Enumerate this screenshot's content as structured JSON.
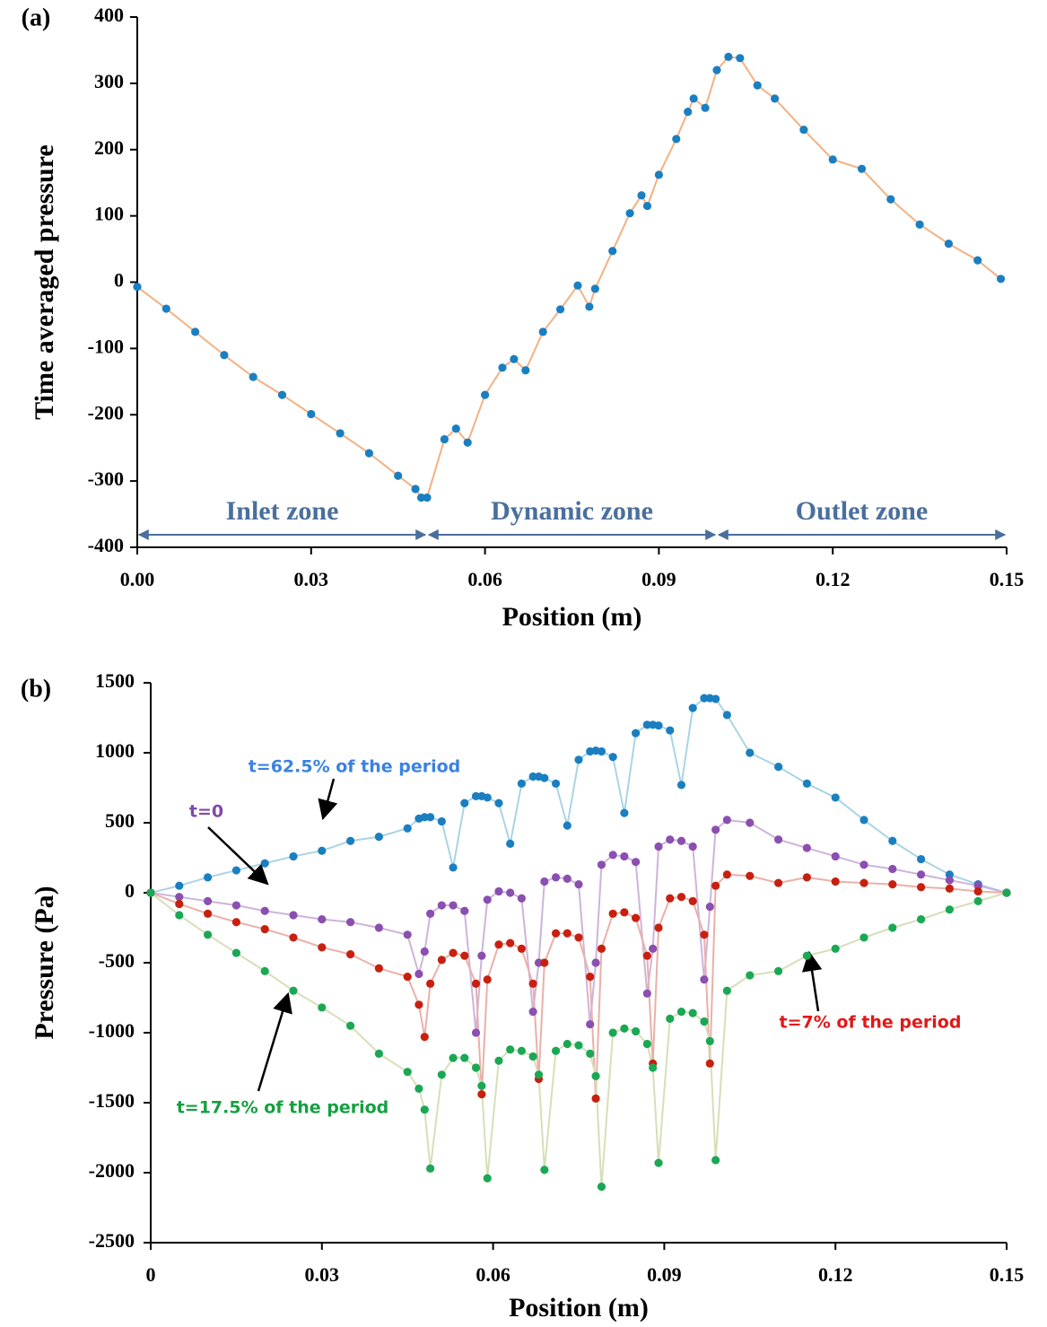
{
  "chart_data": [
    {
      "type": "scatter",
      "panel_label": "(a)",
      "x_label": "Position (m)",
      "y_label": "Time averaged pressure",
      "xlim": [
        0,
        0.15
      ],
      "ylim": [
        -400,
        400
      ],
      "xticks": [
        {
          "value": 0,
          "label": "0.00"
        },
        0.03,
        0.06,
        0.09,
        0.12,
        0.15
      ],
      "yticks": [
        -400,
        -300,
        -200,
        -100,
        0,
        100,
        200,
        300,
        400
      ],
      "zones": [
        {
          "label": "Inlet zone",
          "range": [
            0,
            0.05
          ]
        },
        {
          "label": "Dynamic zone",
          "range": [
            0.05,
            0.1
          ]
        },
        {
          "label": "Outlet zone",
          "range": [
            0.1,
            0.15
          ]
        }
      ],
      "zone_color": "#4a6f9c",
      "x": [
        0,
        0.005,
        0.01,
        0.015,
        0.02,
        0.025,
        0.03,
        0.035,
        0.04,
        0.045,
        0.048,
        0.049,
        0.05,
        0.053,
        0.055,
        0.057,
        0.06,
        0.063,
        0.065,
        0.067,
        0.07,
        0.073,
        0.076,
        0.078,
        0.079,
        0.082,
        0.085,
        0.087,
        0.088,
        0.09,
        0.093,
        0.095,
        0.096,
        0.098,
        0.1,
        0.102,
        0.104,
        0.107,
        0.11,
        0.115,
        0.12,
        0.125,
        0.13,
        0.135,
        0.14,
        0.145,
        0.149
      ],
      "series": [
        {
          "color": "#1a7fc1",
          "line_color": "#f4b183",
          "values": [
            -7,
            -40,
            -75,
            -110,
            -143,
            -170,
            -199,
            -228,
            -258,
            -292,
            -312,
            -325,
            -325,
            -237,
            -221,
            -242,
            -170,
            -129,
            -116,
            -133,
            -75,
            -41,
            -5,
            -37,
            -10,
            47,
            104,
            131,
            115,
            162,
            216,
            257,
            277,
            263,
            320,
            340,
            338,
            297,
            277,
            230,
            185,
            171,
            125,
            87,
            58,
            33,
            5
          ]
        }
      ]
    },
    {
      "type": "scatter",
      "panel_label": "(b)",
      "x_label": "Position (m)",
      "y_label": "Pressure (Pa)",
      "xlim": [
        0,
        0.15
      ],
      "ylim": [
        -2500,
        1500
      ],
      "xticks": [
        0,
        0.03,
        0.06,
        0.09,
        0.12,
        0.15
      ],
      "yticks": [
        -2500,
        -2000,
        -1500,
        -1000,
        -500,
        0,
        500,
        1000,
        1500
      ],
      "x": [
        0,
        0.005,
        0.01,
        0.015,
        0.02,
        0.025,
        0.03,
        0.035,
        0.04,
        0.045,
        0.047,
        0.048,
        0.049,
        0.051,
        0.053,
        0.055,
        0.057,
        0.058,
        0.059,
        0.061,
        0.063,
        0.065,
        0.067,
        0.068,
        0.069,
        0.071,
        0.073,
        0.075,
        0.077,
        0.078,
        0.079,
        0.081,
        0.083,
        0.085,
        0.087,
        0.088,
        0.089,
        0.091,
        0.093,
        0.095,
        0.097,
        0.098,
        0.099,
        0.101,
        0.105,
        0.11,
        0.115,
        0.12,
        0.125,
        0.13,
        0.135,
        0.14,
        0.145,
        0.15
      ],
      "series": [
        {
          "name": "t=62.5% of the period",
          "color": "#1a7fc1",
          "line_color": "#a9d4e6",
          "values": [
            0,
            50,
            110,
            160,
            210,
            260,
            300,
            370,
            400,
            460,
            530,
            540,
            540,
            510,
            180,
            640,
            690,
            690,
            680,
            640,
            350,
            780,
            830,
            830,
            820,
            780,
            480,
            950,
            1010,
            1015,
            1010,
            970,
            570,
            1140,
            1200,
            1200,
            1195,
            1160,
            770,
            1320,
            1390,
            1390,
            1385,
            1270,
            1000,
            900,
            780,
            680,
            520,
            370,
            240,
            130,
            60,
            0
          ]
        },
        {
          "name": "t=0",
          "color": "#8a4fb0",
          "line_color": "#cdb4dc",
          "values": [
            0,
            -30,
            -60,
            -90,
            -130,
            -160,
            -190,
            -210,
            -250,
            -300,
            -580,
            -420,
            -150,
            -90,
            -90,
            -130,
            -1000,
            -450,
            -50,
            10,
            0,
            -40,
            -850,
            -500,
            80,
            110,
            100,
            60,
            -940,
            -500,
            200,
            270,
            260,
            220,
            -720,
            -400,
            330,
            380,
            370,
            330,
            -620,
            -100,
            450,
            520,
            500,
            380,
            320,
            260,
            200,
            170,
            130,
            90,
            50,
            0
          ]
        },
        {
          "name": "t=7% of the period",
          "color": "#c8200e",
          "line_color": "#eab0a8",
          "values": [
            0,
            -80,
            -150,
            -210,
            -260,
            -320,
            -390,
            -440,
            -540,
            -600,
            -800,
            -1030,
            -650,
            -480,
            -430,
            -450,
            -650,
            -1440,
            -620,
            -370,
            -360,
            -400,
            -650,
            -1330,
            -500,
            -290,
            -290,
            -320,
            -600,
            -1470,
            -400,
            -150,
            -140,
            -180,
            -450,
            -1220,
            -250,
            -40,
            -30,
            -60,
            -300,
            -1220,
            50,
            130,
            120,
            70,
            110,
            80,
            70,
            60,
            40,
            30,
            10,
            0
          ]
        },
        {
          "name": "t=17.5% of the period",
          "color": "#1aa855",
          "line_color": "#d6dfb8",
          "values": [
            0,
            -160,
            -300,
            -430,
            -560,
            -700,
            -820,
            -950,
            -1150,
            -1280,
            -1400,
            -1550,
            -1970,
            -1300,
            -1180,
            -1180,
            -1250,
            -1380,
            -2040,
            -1200,
            -1120,
            -1130,
            -1170,
            -1300,
            -1980,
            -1130,
            -1080,
            -1090,
            -1150,
            -1310,
            -2100,
            -1000,
            -970,
            -990,
            -1080,
            -1250,
            -1930,
            -900,
            -850,
            -860,
            -920,
            -1060,
            -1910,
            -700,
            -590,
            -560,
            -450,
            -400,
            -320,
            -250,
            -190,
            -120,
            -60,
            0
          ]
        }
      ],
      "label_colors": [
        "#3b82e0",
        "#7e4aa8",
        "#e01818",
        "#14a040"
      ]
    }
  ]
}
